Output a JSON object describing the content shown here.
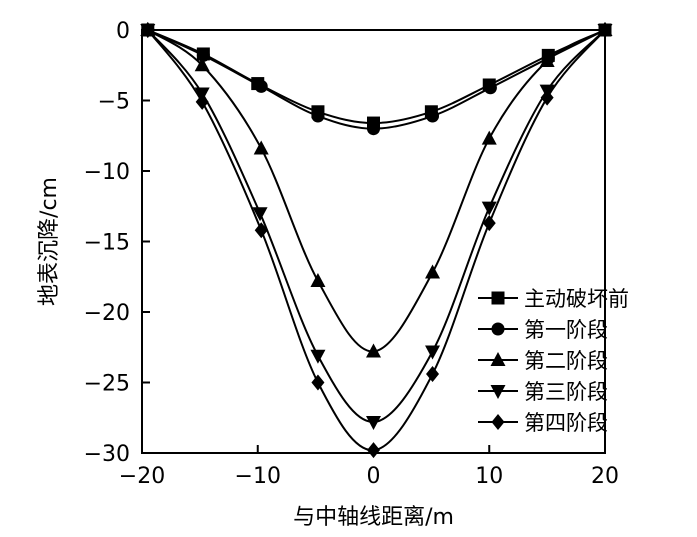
{
  "chart_data": {
    "type": "line",
    "xlabel": "与中轴线距离/m",
    "ylabel": "地表沉降/cm",
    "xlim": [
      -20,
      20
    ],
    "ylim": [
      -30,
      0
    ],
    "xticks": [
      -20,
      -10,
      0,
      10,
      20
    ],
    "yticks": [
      0,
      -5,
      -10,
      -15,
      -20,
      -25,
      -30
    ],
    "legend_position": "right",
    "grid": false,
    "series": [
      {
        "name": "主动破坏前",
        "marker": "square",
        "x": [
          -19.5,
          -14.7,
          -10,
          -4.8,
          0,
          5,
          10,
          15.1,
          20
        ],
        "y": [
          0,
          -1.7,
          -3.8,
          -5.8,
          -6.6,
          -5.8,
          -3.9,
          -1.8,
          0
        ]
      },
      {
        "name": "第一阶段",
        "marker": "circle",
        "x": [
          -19.5,
          -14.7,
          -9.7,
          -4.8,
          0,
          5.1,
          10.1,
          15.1,
          20
        ],
        "y": [
          0,
          -1.8,
          -4.0,
          -6.1,
          -7.0,
          -6.1,
          -4.1,
          -2.0,
          0
        ]
      },
      {
        "name": "第二阶段",
        "marker": "triangle-up",
        "x": [
          -19.5,
          -14.8,
          -9.7,
          -4.8,
          0,
          5.1,
          10,
          15,
          20
        ],
        "y": [
          0,
          -2.5,
          -8.4,
          -17.8,
          -22.8,
          -17.2,
          -7.7,
          -2.2,
          0
        ]
      },
      {
        "name": "第三阶段",
        "marker": "triangle-down",
        "x": [
          -19.5,
          -14.8,
          -9.8,
          -4.8,
          0,
          5.1,
          10,
          15,
          20
        ],
        "y": [
          0,
          -4.5,
          -13.0,
          -23.1,
          -27.8,
          -22.8,
          -12.6,
          -4.3,
          0
        ]
      },
      {
        "name": "第四阶段",
        "marker": "diamond",
        "x": [
          -19.5,
          -14.8,
          -9.7,
          -4.8,
          0,
          5.1,
          10,
          15,
          20
        ],
        "y": [
          0,
          -5.1,
          -14.2,
          -25.0,
          -29.8,
          -24.4,
          -13.7,
          -4.8,
          0
        ]
      }
    ]
  }
}
